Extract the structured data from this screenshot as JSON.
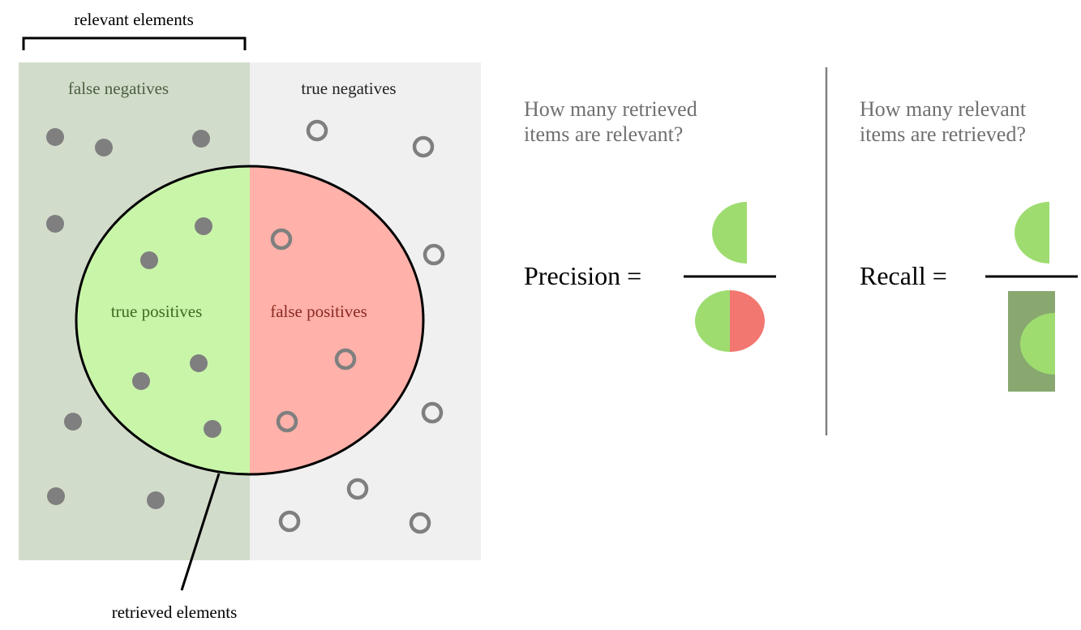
{
  "labels": {
    "relevant_elements": "relevant elements",
    "retrieved_elements": "retrieved elements",
    "false_negatives": "false negatives",
    "true_negatives": "true negatives",
    "true_positives": "true positives",
    "false_positives": "false positives"
  },
  "precision": {
    "question_line1": "How many retrieved",
    "question_line2": "items are relevant?",
    "label": "Precision ="
  },
  "recall": {
    "question_line1": "How many relevant",
    "question_line2": "items are retrieved?",
    "label": "Recall ="
  },
  "colors": {
    "relevant_region": "#d2dccb",
    "irrelevant_region": "#f0f0f0",
    "true_positive_fill": "#c9f5a9",
    "false_positive_fill": "#ffb1aa",
    "precision_green": "#9edc70",
    "precision_red": "#f27770",
    "recall_dark_green": "#88a870",
    "dot_gray": "#7f7f7f",
    "false_negatives_text": "#4a6040",
    "true_positives_text": "#3d6b1f",
    "false_positives_text": "#8b2a22",
    "question_text": "#707070"
  },
  "icons": {
    "relevant_item": "filled-gray-dot",
    "irrelevant_item": "hollow-gray-ring"
  }
}
